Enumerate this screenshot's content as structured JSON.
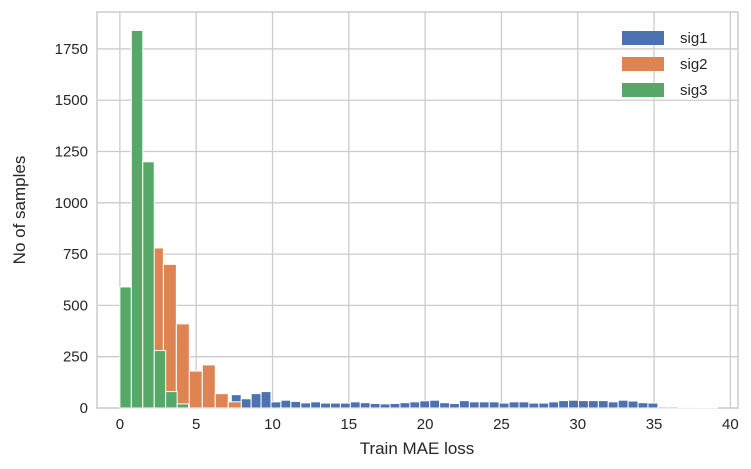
{
  "chart_data": {
    "type": "bar",
    "title": "",
    "xlabel": "Train MAE loss",
    "ylabel": "No of samples",
    "xlim": [
      -1.5,
      40.5
    ],
    "ylim": [
      0,
      1930
    ],
    "grid": true,
    "legend_position": "top-right",
    "x_ticks": [
      {
        "value": 0,
        "label": "0"
      },
      {
        "value": 5,
        "label": "5"
      },
      {
        "value": 10,
        "label": "10"
      },
      {
        "value": 15,
        "label": "15"
      },
      {
        "value": 20,
        "label": "20"
      },
      {
        "value": 25,
        "label": "25"
      },
      {
        "value": 30,
        "label": "30"
      },
      {
        "value": 35,
        "label": "35"
      },
      {
        "value": 40,
        "label": "40"
      }
    ],
    "y_ticks": [
      {
        "value": 0,
        "label": "0"
      },
      {
        "value": 250,
        "label": "250"
      },
      {
        "value": 500,
        "label": "500"
      },
      {
        "value": 750,
        "label": "750"
      },
      {
        "value": 1000,
        "label": "1000"
      },
      {
        "value": 1250,
        "label": "1250"
      },
      {
        "value": 1500,
        "label": "1500"
      },
      {
        "value": 1750,
        "label": "1750"
      }
    ],
    "series": [
      {
        "name": "sig1",
        "color": "#4C72B0",
        "bin_edges": [
          7.3,
          7.95,
          8.6,
          9.25,
          9.9,
          10.55,
          11.2,
          11.85,
          12.5,
          13.15,
          13.8,
          14.45,
          15.1,
          15.75,
          16.4,
          17.05,
          17.7,
          18.35,
          19.0,
          19.65,
          20.3,
          20.95,
          21.6,
          22.25,
          22.9,
          23.55,
          24.2,
          24.85,
          25.5,
          26.15,
          26.8,
          27.45,
          28.1,
          28.75,
          29.4,
          30.05,
          30.7,
          31.35,
          32.0,
          32.65,
          33.3,
          33.95,
          34.6,
          35.25,
          35.9,
          36.55,
          37.2,
          37.85,
          38.5,
          39.15
        ],
        "counts": [
          65,
          45,
          70,
          80,
          30,
          38,
          32,
          25,
          30,
          24,
          24,
          24,
          30,
          26,
          22,
          20,
          22,
          26,
          30,
          35,
          38,
          26,
          22,
          36,
          30,
          30,
          30,
          24,
          30,
          30,
          24,
          24,
          30,
          36,
          38,
          36,
          36,
          36,
          30,
          38,
          34,
          26,
          24,
          6,
          6,
          5,
          5,
          4,
          4
        ]
      },
      {
        "name": "sig2",
        "color": "#DD8452",
        "bin_edges": [
          2.0,
          2.85,
          3.7,
          4.55,
          5.4,
          6.25,
          7.1,
          7.95
        ],
        "counts": [
          780,
          700,
          410,
          180,
          210,
          70,
          30
        ]
      },
      {
        "name": "sig3",
        "color": "#55A868",
        "bin_edges": [
          0.0,
          0.75,
          1.5,
          2.25,
          3.0,
          3.75,
          4.5
        ],
        "counts": [
          590,
          1840,
          1200,
          280,
          80,
          20
        ]
      }
    ]
  }
}
